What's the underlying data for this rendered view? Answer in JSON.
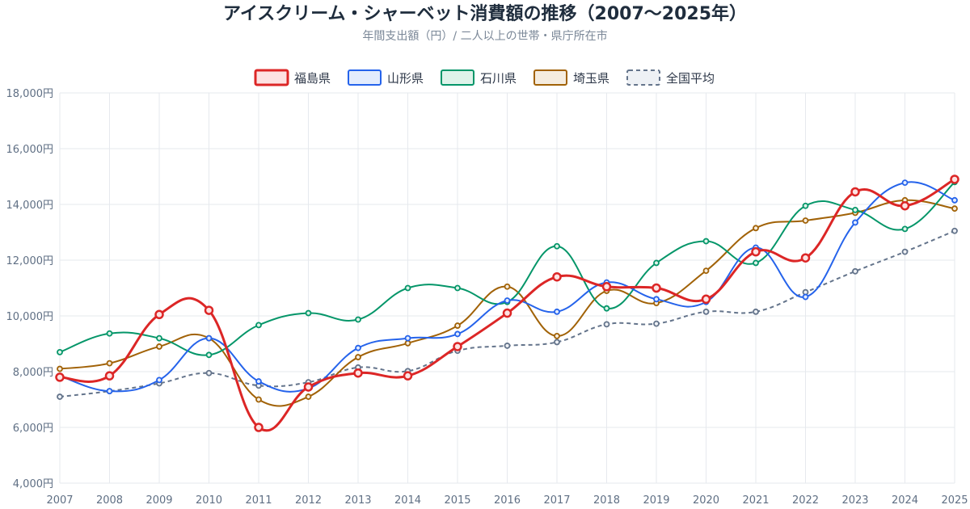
{
  "chart_data": {
    "type": "line",
    "title": "アイスクリーム・シャーベット消費額の推移（2007〜2025年）",
    "subtitle": "年間支出額（円）/ 二人以上の世帯・県庁所在市",
    "x": [
      "2007",
      "2008",
      "2009",
      "2010",
      "2011",
      "2012",
      "2013",
      "2014",
      "2015",
      "2016",
      "2017",
      "2018",
      "2019",
      "2020",
      "2021",
      "2022",
      "2023",
      "2024",
      "2025"
    ],
    "ylim": [
      4000,
      18000
    ],
    "yticks": [
      4000,
      6000,
      8000,
      10000,
      12000,
      14000,
      16000,
      18000
    ],
    "ytick_labels": [
      "4,000円",
      "6,000円",
      "8,000円",
      "10,000円",
      "12,000円",
      "14,000円",
      "16,000円",
      "18,000円"
    ],
    "grid": true,
    "legend_position": "top-center",
    "series": [
      {
        "name": "福島県",
        "color": "#dc2626",
        "fill": "#fde2e2",
        "dashed": false,
        "width": 3,
        "values": [
          7800,
          7850,
          10050,
          10200,
          6000,
          7450,
          7950,
          7850,
          8900,
          10100,
          11400,
          11050,
          11000,
          10600,
          12300,
          12080,
          14450,
          13950,
          14900
        ]
      },
      {
        "name": "山形県",
        "color": "#2563eb",
        "fill": "#e3ecfd",
        "dashed": false,
        "width": 2,
        "values": [
          7850,
          7300,
          7700,
          9200,
          7650,
          7400,
          8850,
          9200,
          9350,
          10550,
          10150,
          11200,
          10600,
          10500,
          12450,
          10680,
          13350,
          14780,
          14150
        ]
      },
      {
        "name": "石川県",
        "color": "#059669",
        "fill": "#dff3ea",
        "dashed": false,
        "width": 2,
        "values": [
          8700,
          9370,
          9200,
          8600,
          9670,
          10100,
          9870,
          11000,
          11000,
          10500,
          12500,
          10270,
          11900,
          12680,
          11900,
          13950,
          13800,
          13120,
          14800
        ]
      },
      {
        "name": "埼玉県",
        "color": "#a16207",
        "fill": "#f5ecdf",
        "dashed": false,
        "width": 2,
        "values": [
          8100,
          8300,
          8900,
          9200,
          7000,
          7100,
          8520,
          9020,
          9650,
          11050,
          9280,
          10900,
          10460,
          11620,
          13150,
          13420,
          13700,
          14150,
          13850
        ]
      },
      {
        "name": "全国平均",
        "color": "#64748b",
        "fill": "#eef1f5",
        "dashed": true,
        "width": 2,
        "values": [
          7100,
          7300,
          7580,
          7950,
          7500,
          7620,
          8150,
          8020,
          8750,
          8930,
          9060,
          9700,
          9720,
          10150,
          10150,
          10850,
          11600,
          12300,
          13050
        ]
      }
    ]
  }
}
